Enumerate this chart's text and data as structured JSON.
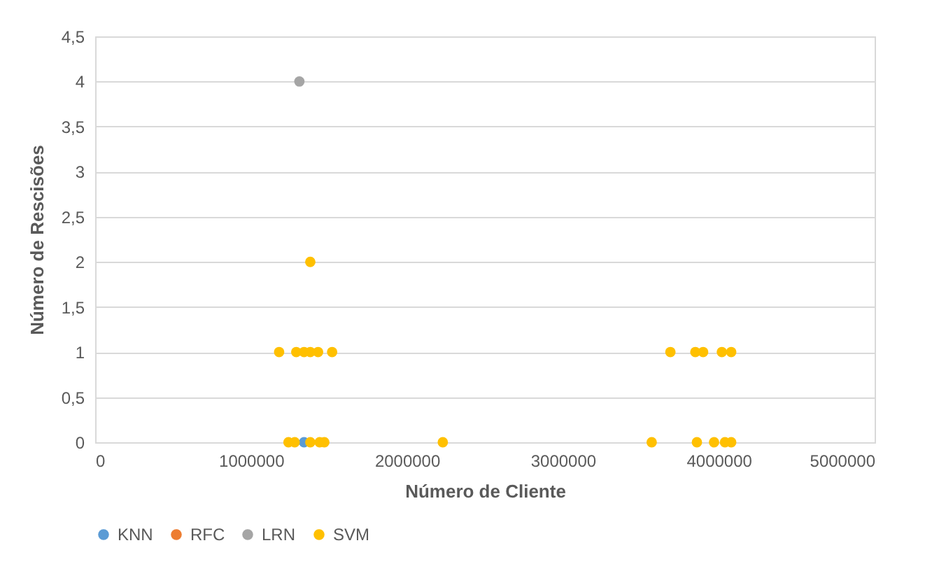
{
  "chart_data": {
    "type": "scatter",
    "xlabel": "Número de Cliente",
    "ylabel": "Número de Rescisões",
    "xlim": [
      0,
      5000000
    ],
    "xticks": [
      0,
      1000000,
      2000000,
      3000000,
      4000000,
      5000000
    ],
    "ylim": [
      0,
      4.5
    ],
    "yticks": [
      {
        "value": 0,
        "label": "0"
      },
      {
        "value": 0.5,
        "label": "0,5"
      },
      {
        "value": 1,
        "label": "1"
      },
      {
        "value": 1.5,
        "label": "1,5"
      },
      {
        "value": 2,
        "label": "2"
      },
      {
        "value": 2.5,
        "label": "2,5"
      },
      {
        "value": 3,
        "label": "3"
      },
      {
        "value": 3.5,
        "label": "3,5"
      },
      {
        "value": 4,
        "label": "4"
      },
      {
        "value": 4.5,
        "label": "4,5"
      }
    ],
    "grid": "y",
    "legend": "bottom",
    "marker": "circle",
    "series": [
      {
        "name": "KNN",
        "color": "#5b9bd5",
        "x": [
          1340000
        ],
        "values": [
          0
        ]
      },
      {
        "name": "RFC",
        "color": "#ed7d31"
      },
      {
        "name": "LRN",
        "color": "#a5a5a5",
        "x": [
          1310000
        ],
        "values": [
          4
        ]
      },
      {
        "name": "SVM",
        "color": "#ffc000",
        "x": [
          1240000,
          1280000,
          1380000,
          1440000,
          1470000,
          2230000,
          1180000,
          1290000,
          1340000,
          1380000,
          1430000,
          1520000,
          1380000,
          3690000,
          3850000,
          3900000,
          4020000,
          4080000,
          3570000,
          3860000,
          3970000,
          4040000,
          4080000
        ],
        "values": [
          0,
          0,
          0,
          0,
          0,
          0,
          1,
          1,
          1,
          1,
          1,
          1,
          2,
          1,
          1,
          1,
          1,
          1,
          0,
          0,
          0,
          0,
          0
        ]
      }
    ]
  }
}
